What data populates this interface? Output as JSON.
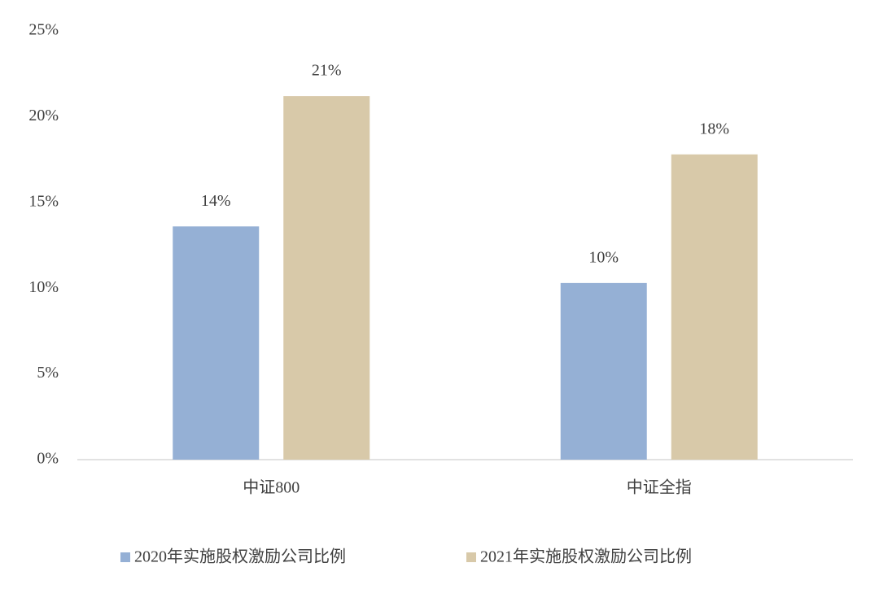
{
  "chart_data": {
    "type": "bar",
    "categories": [
      "中证800",
      "中证全指"
    ],
    "series": [
      {
        "name": "2020年实施股权激励公司比例",
        "color": "#95b0d5",
        "values": [
          13.6,
          10.3
        ],
        "value_labels": [
          "14%",
          "10%"
        ]
      },
      {
        "name": "2021年实施股权激励公司比例",
        "color": "#d8c9a9",
        "values": [
          21.2,
          17.8
        ],
        "value_labels": [
          "21%",
          "18%"
        ]
      }
    ],
    "ylim": [
      0,
      25
    ],
    "yticks": [
      {
        "value": 0,
        "label": "0%"
      },
      {
        "value": 5,
        "label": "5%"
      },
      {
        "value": 10,
        "label": "10%"
      },
      {
        "value": 15,
        "label": "15%"
      },
      {
        "value": 20,
        "label": "20%"
      },
      {
        "value": 25,
        "label": "25%"
      }
    ],
    "grid": false,
    "legend": "bottom"
  }
}
